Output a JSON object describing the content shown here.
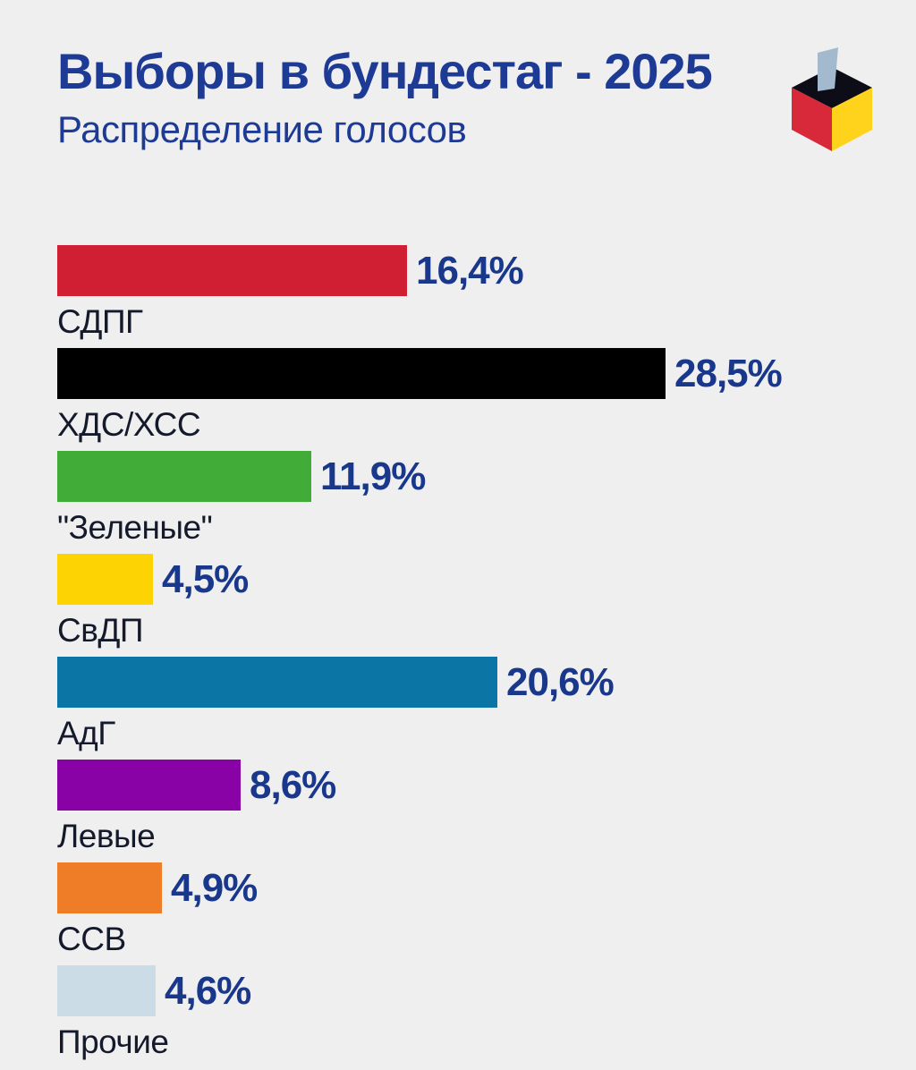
{
  "page": {
    "background_color": "#f0eff0"
  },
  "header": {
    "title": "Выборы в бундестаг - 2025",
    "subtitle": "Распределение голосов",
    "title_color": "#1d3a94",
    "icon": {
      "name": "ballot-box-icon",
      "top_color": "#0d0d17",
      "left_color": "#d8293b",
      "right_color": "#ffd31b",
      "ballot_color": "#a3b9cd"
    }
  },
  "chart_data": {
    "type": "bar",
    "orientation": "horizontal",
    "title": "Выборы в бундестаг - 2025",
    "subtitle": "Распределение голосов",
    "categories": [
      "СДПГ",
      "ХДС/ХСС",
      "\"Зеленые\"",
      "СвДП",
      "АдГ",
      "Левые",
      "ССВ",
      "Прочие"
    ],
    "values": [
      16.4,
      28.5,
      11.9,
      4.5,
      20.6,
      8.6,
      4.9,
      4.6
    ],
    "value_labels": [
      "16,4%",
      "28,5%",
      "11,9%",
      "4,5%",
      "20,6%",
      "8,6%",
      "4,9%",
      "4,6%"
    ],
    "bar_colors": [
      "#d01f33",
      "#000000",
      "#42ac38",
      "#fed304",
      "#0b76a6",
      "#8902a6",
      "#ef7c26",
      "#ccdce6"
    ],
    "value_suffix": "%",
    "max_value": 28.5,
    "value_color": "#19388c",
    "label_color": "#141a2b",
    "legend": false,
    "grid": false,
    "axes_hidden": true
  }
}
